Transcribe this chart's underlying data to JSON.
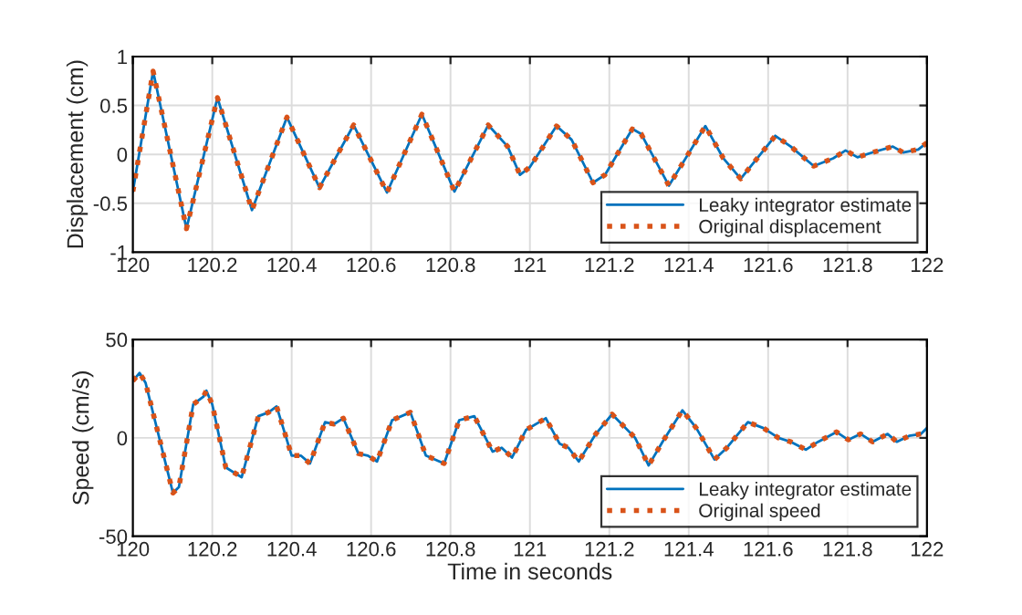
{
  "chart_data": [
    {
      "type": "line",
      "ylabel": "Displacement (cm)",
      "xlim": [
        120,
        122
      ],
      "xticks": [
        120,
        {
          "value": 120.2,
          "label": "120.2"
        },
        {
          "value": 120.4,
          "label": "120.4"
        },
        {
          "value": 120.6,
          "label": "120.6"
        },
        {
          "value": 120.8,
          "label": "120.8"
        },
        121,
        {
          "value": 121.2,
          "label": "121.2"
        },
        {
          "value": 121.4,
          "label": "121.4"
        },
        {
          "value": 121.6,
          "label": "121.6"
        },
        {
          "value": 121.8,
          "label": "121.8"
        },
        122
      ],
      "ylim": [
        -1,
        1
      ],
      "yticks": [
        -1,
        -0.5,
        0,
        0.5,
        1
      ],
      "grid": true,
      "legend": "bottom right",
      "x": [
        120.0,
        120.051,
        120.135,
        120.213,
        120.3,
        120.388,
        120.47,
        120.556,
        120.64,
        120.728,
        120.81,
        120.895,
        120.944,
        120.975,
        121.0,
        121.067,
        121.105,
        121.159,
        121.189,
        121.258,
        121.28,
        121.35,
        121.442,
        121.487,
        121.531,
        121.618,
        121.657,
        121.715,
        121.764,
        121.795,
        121.825,
        121.863,
        121.914,
        121.94,
        121.978,
        122.0
      ],
      "series": [
        {
          "name": "Leaky integrator estimate",
          "color": "#0072bd",
          "line_style": "solid",
          "values": [
            -0.38,
            0.85,
            -0.76,
            0.58,
            -0.57,
            0.38,
            -0.34,
            0.3,
            -0.39,
            0.41,
            -0.38,
            0.3,
            0.08,
            -0.21,
            -0.13,
            0.29,
            0.15,
            -0.29,
            -0.21,
            0.26,
            0.21,
            -0.32,
            0.29,
            -0.04,
            -0.25,
            0.19,
            0.08,
            -0.12,
            -0.04,
            0.04,
            -0.03,
            0.02,
            0.08,
            0.02,
            0.05,
            0.12
          ]
        },
        {
          "name": "Original displacement",
          "color": "#d95319",
          "line_style": "dotted",
          "values": [
            -0.38,
            0.85,
            -0.76,
            0.58,
            -0.57,
            0.38,
            -0.34,
            0.3,
            -0.39,
            0.41,
            -0.38,
            0.3,
            0.08,
            -0.21,
            -0.13,
            0.29,
            0.15,
            -0.29,
            -0.21,
            0.26,
            0.21,
            -0.32,
            0.29,
            -0.04,
            -0.25,
            0.19,
            0.08,
            -0.12,
            -0.04,
            0.04,
            -0.03,
            0.02,
            0.08,
            0.02,
            0.05,
            0.12
          ]
        }
      ]
    },
    {
      "type": "line",
      "xlabel": "Time in seconds",
      "ylabel": "Speed (cm/s)",
      "xlim": [
        120,
        122
      ],
      "xticks": [
        120,
        {
          "value": 120.2,
          "label": "120.2"
        },
        {
          "value": 120.4,
          "label": "120.4"
        },
        {
          "value": 120.6,
          "label": "120.6"
        },
        {
          "value": 120.8,
          "label": "120.8"
        },
        121,
        {
          "value": 121.2,
          "label": "121.2"
        },
        {
          "value": 121.4,
          "label": "121.4"
        },
        {
          "value": 121.6,
          "label": "121.6"
        },
        {
          "value": 121.8,
          "label": "121.8"
        },
        122
      ],
      "ylim": [
        -50,
        50
      ],
      "yticks": [
        -50,
        0,
        50
      ],
      "grid": true,
      "legend": "bottom right",
      "x": [
        120.0,
        120.017,
        120.032,
        120.101,
        120.116,
        120.152,
        120.178,
        120.185,
        120.2,
        120.234,
        120.274,
        120.316,
        120.342,
        120.362,
        120.4,
        120.423,
        120.446,
        120.484,
        120.507,
        120.53,
        120.568,
        120.592,
        120.615,
        120.653,
        120.699,
        120.738,
        120.784,
        120.822,
        120.86,
        120.906,
        120.929,
        120.955,
        120.99,
        121.04,
        121.075,
        121.097,
        121.123,
        121.166,
        121.207,
        121.265,
        121.299,
        121.334,
        121.384,
        121.419,
        121.465,
        121.496,
        121.549,
        121.588,
        121.626,
        121.657,
        121.695,
        121.726,
        121.772,
        121.802,
        121.833,
        121.863,
        121.901,
        121.924,
        121.955,
        121.985,
        122.0
      ],
      "series": [
        {
          "name": "Leaky integrator estimate",
          "color": "#0072bd",
          "line_style": "solid",
          "values": [
            29,
            33,
            28,
            -28,
            -25,
            17,
            21,
            24,
            17,
            -15,
            -20,
            11,
            13,
            16,
            -9,
            -9,
            -13,
            8,
            7,
            10,
            -8,
            -9,
            -12,
            9,
            13,
            -9,
            -13,
            9,
            11,
            -7,
            -5,
            -10,
            4,
            10,
            -3,
            -5,
            -12,
            2,
            12,
            0,
            -14,
            -2,
            14,
            5,
            -11,
            -5,
            8,
            5,
            0,
            -2,
            -6,
            -2,
            3,
            -1,
            2,
            -2,
            2,
            -2,
            1,
            2,
            5
          ]
        },
        {
          "name": "Original speed",
          "color": "#d95319",
          "line_style": "dotted",
          "values": [
            29,
            33,
            28,
            -28,
            -25,
            17,
            21,
            24,
            17,
            -15,
            -20,
            11,
            13,
            16,
            -9,
            -9,
            -13,
            8,
            7,
            10,
            -8,
            -9,
            -12,
            9,
            13,
            -9,
            -13,
            9,
            11,
            -7,
            -5,
            -10,
            4,
            10,
            -3,
            -5,
            -12,
            2,
            12,
            0,
            -14,
            -2,
            14,
            5,
            -11,
            -5,
            8,
            5,
            0,
            -2,
            -6,
            -2,
            3,
            -1,
            2,
            -2,
            2,
            -2,
            1,
            2,
            5
          ]
        }
      ]
    }
  ]
}
